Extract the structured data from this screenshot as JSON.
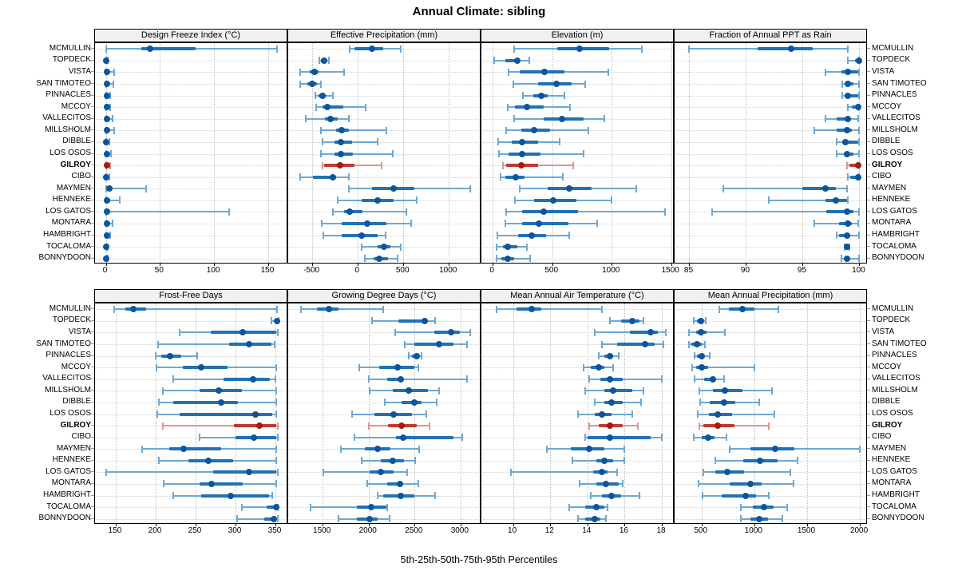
{
  "title": "Annual Climate: sibling",
  "caption": "5th-25th-50th-75th-95th Percentiles",
  "percentile_labels": [
    "5th",
    "25th",
    "50th",
    "75th",
    "95th"
  ],
  "highlight_station": "GILROY",
  "stations": [
    "MCMULLIN",
    "TOPDECK",
    "VISTA",
    "SAN TIMOTEO",
    "PINNACLES",
    "MCCOY",
    "VALLECITOS",
    "MILLSHOLM",
    "DIBBLE",
    "LOS OSOS",
    "GILROY",
    "CIBO",
    "MAYMEN",
    "HENNEKE",
    "LOS GATOS",
    "MONTARA",
    "HAMBRIGHT",
    "TOCALOMA",
    "BONNYDOON"
  ],
  "colors": {
    "blue_light": "#6fa8d2",
    "blue_mid": "#2171b5",
    "blue_dark": "#0b559c",
    "red_light": "#e0968c",
    "red_mid": "#c0392b",
    "red_dark": "#a51c10",
    "strip_bg": "#f0f0f0",
    "grid_v": "#bdbdbd",
    "grid_h": "#d2d2d2",
    "border": "#000000"
  },
  "chart_data": [
    {
      "type": "percentile-dotplot",
      "title": "Design Freeze Index (°C)",
      "row": 0,
      "col": 0,
      "xlim": [
        -10,
        167
      ],
      "ticks": [
        0,
        50,
        100,
        150
      ],
      "tick_labels": [
        "0",
        "50",
        "100",
        "150"
      ],
      "values": [
        [
          0,
          33,
          41,
          83,
          158
        ],
        [
          0,
          0,
          0,
          1,
          2
        ],
        [
          0,
          0,
          1,
          2,
          8
        ],
        [
          0,
          0,
          1,
          2,
          7
        ],
        [
          0,
          0,
          1,
          2,
          4
        ],
        [
          0,
          0,
          1,
          2,
          4
        ],
        [
          0,
          0,
          1,
          2,
          6
        ],
        [
          0,
          0,
          1,
          2,
          8
        ],
        [
          0,
          0,
          0,
          1,
          3
        ],
        [
          0,
          0,
          1,
          2,
          5
        ],
        [
          0,
          0,
          1,
          2,
          4
        ],
        [
          0,
          0,
          0,
          1,
          3
        ],
        [
          0,
          2,
          3,
          6,
          37
        ],
        [
          0,
          0,
          1,
          4,
          13
        ],
        [
          0,
          0,
          1,
          2,
          114
        ],
        [
          0,
          0,
          1,
          2,
          6
        ],
        [
          0,
          0,
          1,
          2,
          4
        ],
        [
          0,
          0,
          0,
          1,
          2
        ],
        [
          0,
          0,
          0,
          1,
          2
        ]
      ]
    },
    {
      "type": "percentile-dotplot",
      "title": "Effective Precipitation (mm)",
      "row": 0,
      "col": 1,
      "xlim": [
        -765,
        1340
      ],
      "ticks": [
        -500,
        0,
        500,
        1000
      ],
      "tick_labels": [
        "-500",
        "0",
        "500",
        "1000"
      ],
      "values": [
        [
          -90,
          -40,
          155,
          275,
          475
        ],
        [
          -425,
          -405,
          -370,
          -340,
          -320
        ],
        [
          -630,
          -530,
          -475,
          -430,
          -150
        ],
        [
          -630,
          -555,
          -505,
          -445,
          -405
        ],
        [
          -465,
          -430,
          -385,
          -350,
          -270
        ],
        [
          -460,
          -385,
          -335,
          -160,
          90
        ],
        [
          -575,
          -365,
          -300,
          -225,
          -95
        ],
        [
          -405,
          -240,
          -175,
          -95,
          315
        ],
        [
          -390,
          -255,
          -185,
          -65,
          215
        ],
        [
          -405,
          -255,
          -185,
          -55,
          385
        ],
        [
          -390,
          -370,
          -195,
          -35,
          265
        ],
        [
          -630,
          -495,
          -270,
          -240,
          -100
        ],
        [
          -95,
          155,
          390,
          620,
          1235
        ],
        [
          -225,
          40,
          220,
          395,
          650
        ],
        [
          -270,
          -150,
          -90,
          55,
          535
        ],
        [
          -400,
          -180,
          100,
          315,
          590
        ],
        [
          -375,
          -180,
          45,
          215,
          305
        ],
        [
          40,
          215,
          285,
          360,
          475
        ],
        [
          75,
          170,
          235,
          330,
          440
        ]
      ]
    },
    {
      "type": "percentile-dotplot",
      "title": "Elevation (m)",
      "row": 0,
      "col": 2,
      "xlim": [
        -95,
        1515
      ],
      "ticks": [
        0,
        500,
        1000,
        1500
      ],
      "tick_labels": [
        "0",
        "500",
        "1000",
        "1500"
      ],
      "values": [
        [
          180,
          540,
          730,
          980,
          1255
        ],
        [
          15,
          105,
          205,
          230,
          305
        ],
        [
          135,
          230,
          435,
          600,
          970
        ],
        [
          170,
          380,
          535,
          660,
          780
        ],
        [
          255,
          340,
          410,
          460,
          605
        ],
        [
          125,
          185,
          285,
          425,
          650
        ],
        [
          180,
          430,
          580,
          765,
          935
        ],
        [
          110,
          240,
          345,
          485,
          805
        ],
        [
          45,
          160,
          245,
          380,
          560
        ],
        [
          50,
          135,
          250,
          400,
          765
        ],
        [
          85,
          115,
          240,
          380,
          675
        ],
        [
          65,
          105,
          195,
          270,
          590
        ],
        [
          225,
          460,
          645,
          830,
          1205
        ],
        [
          185,
          345,
          510,
          705,
          1000
        ],
        [
          110,
          245,
          430,
          715,
          1450
        ],
        [
          105,
          250,
          390,
          635,
          880
        ],
        [
          40,
          215,
          330,
          450,
          645
        ],
        [
          30,
          85,
          125,
          205,
          290
        ],
        [
          30,
          70,
          125,
          180,
          315
        ]
      ]
    },
    {
      "type": "percentile-dotplot",
      "title": "Fraction of Annual PPT as Rain",
      "row": 0,
      "col": 3,
      "xlim": [
        83.7,
        100.6
      ],
      "ticks": [
        85,
        90,
        95,
        100
      ],
      "tick_labels": [
        "85",
        "90",
        "95",
        "100"
      ],
      "values": [
        [
          85,
          91,
          94,
          95.9,
          99
        ],
        [
          99,
          99.6,
          100,
          100,
          100
        ],
        [
          97,
          98.4,
          99,
          99.9,
          100
        ],
        [
          98.5,
          98.8,
          99,
          99.5,
          100
        ],
        [
          98.5,
          98.9,
          99,
          99.9,
          100
        ],
        [
          99,
          99.3,
          99.9,
          100,
          100
        ],
        [
          97,
          98,
          99,
          99.2,
          99.9
        ],
        [
          96,
          98,
          98.9,
          99.3,
          100
        ],
        [
          98,
          98.5,
          98.8,
          99.9,
          100
        ],
        [
          98,
          98.6,
          98.9,
          99.5,
          100
        ],
        [
          98.9,
          99.1,
          99.9,
          100,
          100
        ],
        [
          99,
          99.2,
          99.9,
          100,
          100
        ],
        [
          88,
          95,
          97,
          97.9,
          98.9
        ],
        [
          92,
          97,
          97.9,
          98.9,
          99
        ],
        [
          87,
          97.1,
          98.9,
          99.5,
          100
        ],
        [
          96,
          98.2,
          99,
          99.3,
          99.9
        ],
        [
          98,
          98.2,
          98.9,
          99.2,
          100
        ],
        [
          98.7,
          98.8,
          98.9,
          99,
          99.1
        ],
        [
          98.4,
          98.7,
          98.9,
          99.1,
          100
        ]
      ]
    },
    {
      "type": "percentile-dotplot",
      "title": "Frost-Free Days",
      "row": 1,
      "col": 0,
      "xlim": [
        124,
        364
      ],
      "ticks": [
        150,
        200,
        250,
        300,
        350
      ],
      "tick_labels": [
        "150",
        "200",
        "250",
        "300",
        "350"
      ],
      "values": [
        [
          148,
          162,
          172,
          188,
          352
        ],
        [
          345,
          350,
          352,
          353,
          354
        ],
        [
          230,
          269,
          309,
          351,
          353
        ],
        [
          203,
          292,
          317,
          345,
          349
        ],
        [
          200,
          207,
          218,
          232,
          252
        ],
        [
          201,
          234,
          257,
          290,
          351
        ],
        [
          222,
          285,
          322,
          343,
          350
        ],
        [
          209,
          255,
          279,
          308,
          351
        ],
        [
          204,
          222,
          282,
          303,
          351
        ],
        [
          202,
          230,
          325,
          346,
          351
        ],
        [
          209,
          298,
          330,
          351,
          353
        ],
        [
          255,
          300,
          323,
          351,
          353
        ],
        [
          183,
          217,
          235,
          282,
          351
        ],
        [
          204,
          241,
          266,
          297,
          351
        ],
        [
          138,
          272,
          317,
          351,
          353
        ],
        [
          210,
          255,
          270,
          309,
          351
        ],
        [
          222,
          257,
          294,
          342,
          346
        ],
        [
          308,
          339,
          351,
          352,
          353
        ],
        [
          302,
          336,
          348,
          351,
          353
        ]
      ]
    },
    {
      "type": "percentile-dotplot",
      "title": "Growing Degree Days (°C)",
      "row": 1,
      "col": 1,
      "xlim": [
        1125,
        3210
      ],
      "ticks": [
        1500,
        2000,
        2500,
        3000
      ],
      "tick_labels": [
        "1500",
        "2000",
        "2500",
        "3000"
      ],
      "values": [
        [
          1260,
          1440,
          1565,
          1675,
          2160
        ],
        [
          2035,
          2325,
          2610,
          2645,
          2725
        ],
        [
          2290,
          2715,
          2895,
          2990,
          3110
        ],
        [
          2395,
          2495,
          2770,
          2925,
          3075
        ],
        [
          2435,
          2470,
          2520,
          2560,
          2580
        ],
        [
          1900,
          2115,
          2315,
          2500,
          2540
        ],
        [
          2000,
          2205,
          2350,
          2385,
          3070
        ],
        [
          2015,
          2260,
          2440,
          2645,
          2770
        ],
        [
          2175,
          2355,
          2500,
          2580,
          2745
        ],
        [
          1820,
          2065,
          2270,
          2470,
          2630
        ],
        [
          2000,
          2210,
          2360,
          2520,
          2665
        ],
        [
          1845,
          2295,
          2375,
          2925,
          3015
        ],
        [
          1695,
          1955,
          2100,
          2240,
          2550
        ],
        [
          1920,
          2135,
          2260,
          2385,
          2505
        ],
        [
          1505,
          2010,
          2135,
          2275,
          2420
        ],
        [
          1985,
          2205,
          2340,
          2365,
          2540
        ],
        [
          2095,
          2160,
          2350,
          2500,
          2725
        ],
        [
          1370,
          1875,
          2030,
          2190,
          2200
        ],
        [
          1670,
          1870,
          2010,
          2100,
          2230
        ]
      ]
    },
    {
      "type": "percentile-dotplot",
      "title": "Mean Annual Air Temperature (°C)",
      "row": 1,
      "col": 2,
      "xlim": [
        8.3,
        18.6
      ],
      "ticks": [
        10,
        12,
        14,
        16,
        18
      ],
      "tick_labels": [
        "10",
        "12",
        "14",
        "16",
        "18"
      ],
      "values": [
        [
          9.1,
          10.2,
          11.0,
          11.5,
          14.8
        ],
        [
          15.2,
          15.8,
          16.4,
          16.8,
          17.0
        ],
        [
          14.4,
          16.3,
          17.4,
          17.8,
          18.2
        ],
        [
          14.8,
          15.6,
          17.1,
          17.6,
          18.1
        ],
        [
          14.6,
          14.9,
          15.2,
          15.4,
          15.7
        ],
        [
          13.8,
          14.2,
          14.6,
          14.9,
          15.4
        ],
        [
          14.1,
          14.7,
          15.2,
          15.9,
          18.0
        ],
        [
          13.9,
          14.9,
          15.4,
          16.4,
          17.0
        ],
        [
          14.4,
          14.9,
          15.3,
          15.9,
          16.9
        ],
        [
          13.5,
          14.4,
          14.8,
          15.3,
          16.4
        ],
        [
          14.1,
          14.6,
          15.2,
          15.9,
          16.7
        ],
        [
          13.9,
          14.0,
          15.2,
          17.4,
          18.0
        ],
        [
          11.8,
          13.1,
          14.1,
          14.9,
          16.0
        ],
        [
          13.2,
          14.5,
          14.9,
          15.4,
          16.0
        ],
        [
          9.9,
          14.3,
          14.8,
          15.1,
          15.6
        ],
        [
          13.6,
          14.5,
          15.0,
          15.7,
          15.9
        ],
        [
          14.2,
          14.8,
          15.3,
          15.8,
          16.8
        ],
        [
          13.0,
          13.9,
          14.5,
          14.9,
          15.1
        ],
        [
          13.5,
          13.9,
          14.4,
          14.7,
          15.0
        ]
      ]
    },
    {
      "type": "percentile-dotplot",
      "title": "Mean Annual Precipitation (mm)",
      "row": 1,
      "col": 3,
      "xlim": [
        245,
        2060
      ],
      "ticks": [
        500,
        1000,
        1500,
        2000
      ],
      "tick_labels": [
        "500",
        "1000",
        "1500",
        "2000"
      ],
      "values": [
        [
          670,
          760,
          890,
          1000,
          1225
        ],
        [
          430,
          455,
          495,
          520,
          540
        ],
        [
          380,
          450,
          495,
          545,
          720
        ],
        [
          380,
          405,
          457,
          500,
          530
        ],
        [
          435,
          460,
          500,
          525,
          575
        ],
        [
          410,
          450,
          505,
          565,
          1000
        ],
        [
          435,
          525,
          605,
          630,
          715
        ],
        [
          480,
          605,
          725,
          885,
          1170
        ],
        [
          485,
          575,
          715,
          820,
          1045
        ],
        [
          465,
          570,
          655,
          790,
          1190
        ],
        [
          480,
          520,
          650,
          810,
          1140
        ],
        [
          425,
          500,
          560,
          620,
          740
        ],
        [
          770,
          965,
          1200,
          1380,
          2000
        ],
        [
          630,
          895,
          1055,
          1220,
          1410
        ],
        [
          515,
          630,
          745,
          905,
          1345
        ],
        [
          475,
          770,
          965,
          1070,
          1370
        ],
        [
          510,
          690,
          915,
          1015,
          1140
        ],
        [
          875,
          985,
          1090,
          1180,
          1315
        ],
        [
          875,
          960,
          1045,
          1130,
          1265
        ]
      ]
    }
  ]
}
